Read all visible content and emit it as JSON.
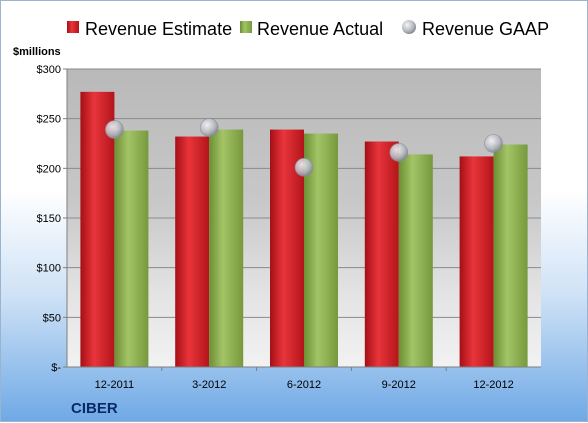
{
  "chart_data": {
    "type": "bar",
    "ylabel": "$millions",
    "company": "CIBER",
    "categories": [
      "12-2011",
      "3-2012",
      "6-2012",
      "9-2012",
      "12-2012"
    ],
    "ylim": [
      0,
      300
    ],
    "y_ticks": [
      0,
      50,
      100,
      150,
      200,
      250,
      300
    ],
    "y_tick_labels": [
      "$-",
      "$50",
      "$100",
      "$150",
      "$200",
      "$250",
      "$300"
    ],
    "series": [
      {
        "name": "Revenue Estimate",
        "kind": "bar",
        "color": "#d8232a",
        "values": [
          277,
          232,
          239,
          227,
          212
        ]
      },
      {
        "name": "Revenue Actual",
        "kind": "bar",
        "color": "#8db050",
        "values": [
          238,
          239,
          235,
          214,
          224
        ]
      },
      {
        "name": "Revenue GAAP",
        "kind": "marker",
        "color": "#b9bcc4",
        "values": [
          239,
          241,
          201,
          216,
          225
        ]
      }
    ],
    "legend_position": "top",
    "grid": true
  }
}
